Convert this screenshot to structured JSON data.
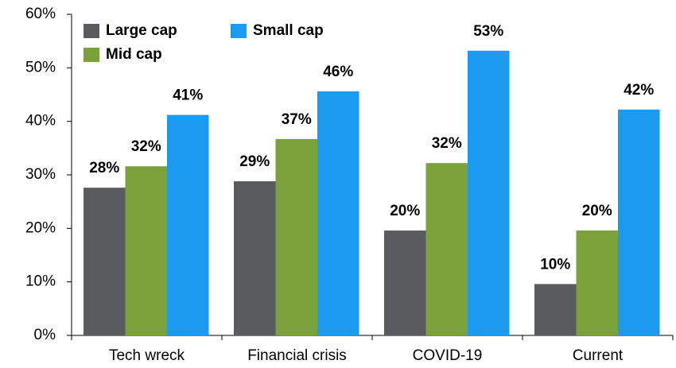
{
  "chart_data": {
    "type": "bar",
    "categories": [
      "Tech wreck",
      "Financial crisis",
      "COVID-19",
      "Current"
    ],
    "series": [
      {
        "name": "Large cap",
        "color": "#595c5f",
        "values": [
          27.6,
          28.8,
          19.6,
          9.6
        ],
        "value_labels": [
          "28%",
          "29%",
          "20%",
          "10%"
        ]
      },
      {
        "name": "Mid cap",
        "color": "#7ba23a",
        "values": [
          31.6,
          36.7,
          32.2,
          19.6
        ],
        "value_labels": [
          "32%",
          "37%",
          "32%",
          "20%"
        ]
      },
      {
        "name": "Small cap",
        "color": "#1b9bf0",
        "values": [
          41.2,
          45.6,
          53.2,
          42.2
        ],
        "value_labels": [
          "41%",
          "46%",
          "53%",
          "42%"
        ]
      }
    ],
    "ylim": [
      0,
      60
    ],
    "yticks": [
      {
        "value": 0,
        "label": "0%"
      },
      {
        "value": 10,
        "label": "10%"
      },
      {
        "value": 20,
        "label": "20%"
      },
      {
        "value": 30,
        "label": "30%"
      },
      {
        "value": 40,
        "label": "40%"
      },
      {
        "value": 50,
        "label": "50%"
      },
      {
        "value": 60,
        "label": "60%"
      }
    ],
    "legend": "top-left"
  }
}
